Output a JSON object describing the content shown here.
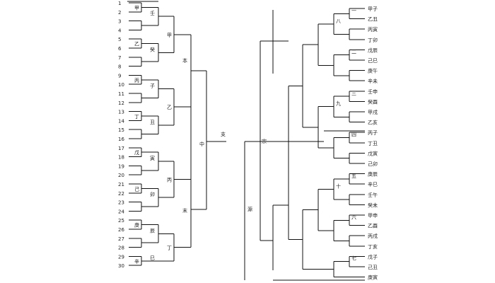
{
  "left_tree": {
    "leaf_labels": [
      "1",
      "2",
      "3",
      "4",
      "5",
      "6",
      "7",
      "8",
      "9",
      "10",
      "11",
      "12",
      "13",
      "14",
      "15",
      "16",
      "17",
      "18",
      "19",
      "20",
      "21",
      "22",
      "23",
      "24",
      "25",
      "26",
      "27",
      "28",
      "29",
      "30"
    ],
    "group_labels": [
      "甲",
      "乙",
      "丙",
      "丁",
      "戊",
      "己",
      "庚",
      "辛",
      "壬",
      "癸",
      "子",
      "丑",
      "寅",
      "卯",
      "辰",
      "巳",
      "午",
      "未"
    ],
    "mid_labels": [
      "支",
      "甲",
      "乙",
      "丙",
      "丁"
    ],
    "junction_labels": [
      "本",
      "中",
      "末"
    ]
  },
  "right_tree": {
    "root_labels": [
      "宗",
      "源"
    ],
    "branch_labels": [
      "一",
      "二",
      "三",
      "四",
      "五",
      "六",
      "七",
      "八",
      "九",
      "十"
    ],
    "leaf_labels": [
      "甲子",
      "乙丑",
      "丙寅",
      "丁卯",
      "戊辰",
      "己巳",
      "庚午",
      "辛未",
      "壬申",
      "癸酉",
      "甲戌",
      "乙亥",
      "丙子",
      "丁丑",
      "戊寅",
      "己卯",
      "庚辰",
      "辛巳",
      "壬午",
      "癸未",
      "甲申",
      "乙酉",
      "丙戌",
      "丁亥",
      "戊子",
      "己丑",
      "庚寅"
    ]
  },
  "colors": {
    "line": "#111111",
    "text": "#222222",
    "background": "#ffffff"
  }
}
